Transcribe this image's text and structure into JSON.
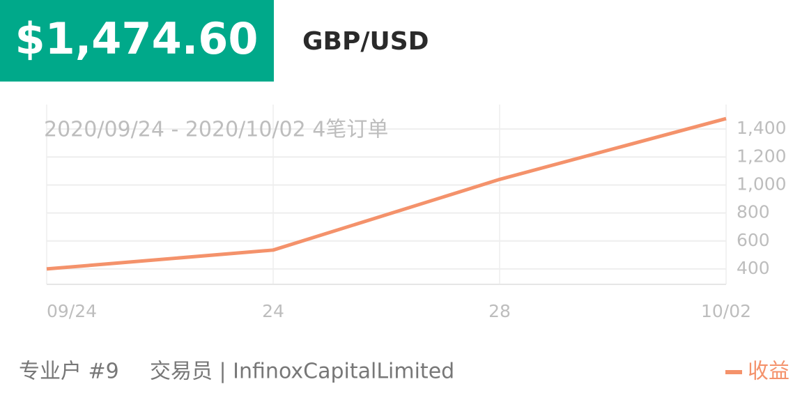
{
  "header": {
    "price": "$1,474.60",
    "pair": "GBP/USD"
  },
  "chart_data": {
    "type": "line",
    "subtitle": "2020/09/24 - 2020/10/02  4笔订单",
    "categories": [
      "09/24",
      "24",
      "28",
      "10/02"
    ],
    "series": [
      {
        "name": "收益",
        "color": "#f4926b",
        "values": [
          400,
          535,
          1040,
          1474.6
        ]
      }
    ],
    "ylim": [
      290,
      1575
    ],
    "yticks": [
      400,
      600,
      800,
      {
        "value": 1000,
        "label": "1,000"
      },
      {
        "value": 1200,
        "label": "1,200"
      },
      {
        "value": 1400,
        "label": "1,400"
      }
    ],
    "grid": true
  },
  "footer": {
    "user": "专业户 #9",
    "trader": "交易员 | InfinoxCapitalLimited"
  }
}
